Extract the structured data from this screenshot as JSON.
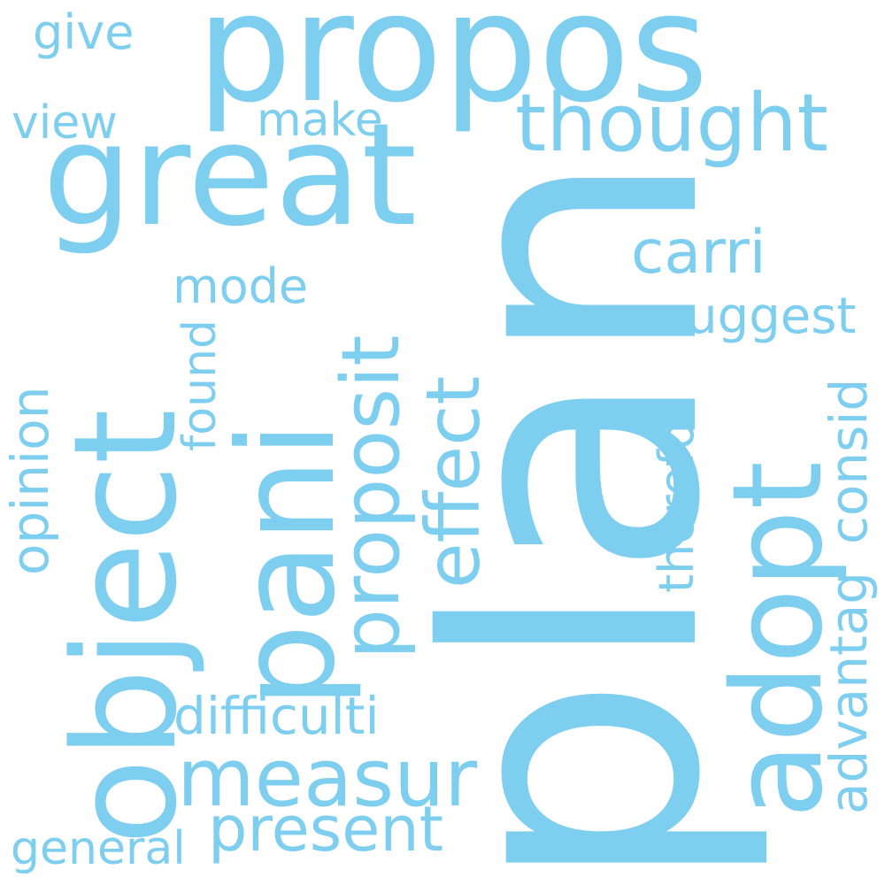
{
  "cloud": {
    "color": "#7ecef0",
    "background": "#ffffff",
    "words": {
      "plan": "plan",
      "propos": "propos",
      "great": "great",
      "object": "object",
      "pani": "pani",
      "adopt": "adopt",
      "thought": "thought",
      "proposit": "proposit",
      "effect": "effect",
      "measur": "measur",
      "present": "present",
      "carri": "carri",
      "difficulti": "difficulti",
      "suggest": "suggest",
      "mode": "mode",
      "make": "make",
      "view": "view",
      "give": "give",
      "found": "found",
      "opinion": "opinion",
      "therefor": "therefor",
      "consid": "consid",
      "advantag": "advantag",
      "general": "general"
    }
  }
}
